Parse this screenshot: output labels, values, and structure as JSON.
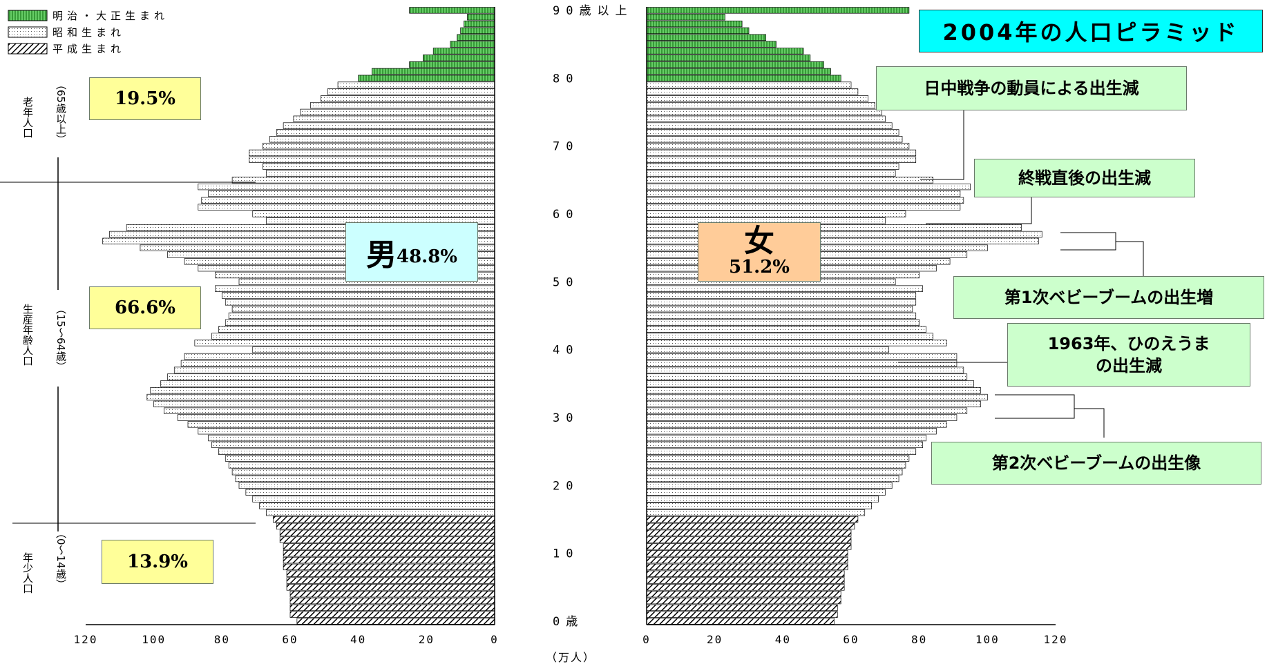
{
  "title": "2004年の人口ピラミッド",
  "legend": [
    {
      "label": "明治・大正生まれ",
      "pattern": "meiji"
    },
    {
      "label": "昭和生まれ",
      "pattern": "showa"
    },
    {
      "label": "平成生まれ",
      "pattern": "heisei"
    }
  ],
  "male": {
    "label": "男",
    "pct": "48.8%"
  },
  "female": {
    "label": "女",
    "pct": "51.2%"
  },
  "age_groups": [
    {
      "label": "老年人口",
      "range": "（65歳以上）",
      "pct": "19.5%"
    },
    {
      "label": "生産年齢人口",
      "range": "（15～64歳）",
      "pct": "66.6%"
    },
    {
      "label": "年少人口",
      "range": "（0～14歳）",
      "pct": "13.9%"
    }
  ],
  "annotations": {
    "a1": "日中戦争の動員による出生減",
    "a2": "終戦直後の出生減",
    "a3": "第1次ベビーブームの出生増",
    "a4_line1": "1963年、ひのえうま",
    "a4_line2": "の出生減",
    "a5": "第2次ベビーブームの出生像"
  },
  "x_unit": "（万人）",
  "chart_data": {
    "type": "bar",
    "title": "2004年の人口ピラミッド",
    "xlabel": "（万人）",
    "ylabel": "",
    "xlim_male": [
      120,
      0
    ],
    "xlim_female": [
      0,
      120
    ],
    "x_ticks_male": [
      "120",
      "100",
      "80",
      "60",
      "40",
      "20",
      "0"
    ],
    "x_ticks_female": [
      "0",
      "20",
      "40",
      "60",
      "80",
      "100",
      "120"
    ],
    "age_ticks": [
      "0歳",
      "10",
      "20",
      "30",
      "40",
      "50",
      "60",
      "70",
      "80",
      "90歳以上"
    ],
    "ages": [
      0,
      1,
      2,
      3,
      4,
      5,
      6,
      7,
      8,
      9,
      10,
      11,
      12,
      13,
      14,
      15,
      16,
      17,
      18,
      19,
      20,
      21,
      22,
      23,
      24,
      25,
      26,
      27,
      28,
      29,
      30,
      31,
      32,
      33,
      34,
      35,
      36,
      37,
      38,
      39,
      40,
      41,
      42,
      43,
      44,
      45,
      46,
      47,
      48,
      49,
      50,
      51,
      52,
      53,
      54,
      55,
      56,
      57,
      58,
      59,
      60,
      61,
      62,
      63,
      64,
      65,
      66,
      67,
      68,
      69,
      70,
      71,
      72,
      73,
      74,
      75,
      76,
      77,
      78,
      79,
      80,
      81,
      82,
      83,
      84,
      85,
      86,
      87,
      88,
      89,
      "90歳以上"
    ],
    "series": [
      {
        "name": "男",
        "values": [
          58,
          60,
          60,
          60,
          60,
          61,
          61,
          61,
          62,
          62,
          62,
          62,
          63,
          63,
          64,
          65,
          67,
          69,
          71,
          73,
          75,
          76,
          77,
          78,
          79,
          81,
          83,
          84,
          87,
          90,
          93,
          97,
          100,
          102,
          101,
          98,
          96,
          94,
          92,
          91,
          71,
          88,
          83,
          81,
          79,
          78,
          77,
          79,
          80,
          82,
          75,
          82,
          87,
          91,
          96,
          104,
          115,
          113,
          108,
          67,
          71,
          87,
          86,
          84,
          87,
          77,
          67,
          68,
          72,
          72,
          68,
          66,
          64,
          62,
          59,
          57,
          54,
          51,
          49,
          46,
          40,
          36,
          25,
          21,
          18,
          13,
          11,
          10,
          9,
          8,
          25
        ],
        "era": [
          "平成",
          "平成",
          "平成",
          "平成",
          "平成",
          "平成",
          "平成",
          "平成",
          "平成",
          "平成",
          "平成",
          "平成",
          "平成",
          "平成",
          "平成",
          "平成",
          "昭和",
          "昭和",
          "昭和",
          "昭和",
          "昭和",
          "昭和",
          "昭和",
          "昭和",
          "昭和",
          "昭和",
          "昭和",
          "昭和",
          "昭和",
          "昭和",
          "昭和",
          "昭和",
          "昭和",
          "昭和",
          "昭和",
          "昭和",
          "昭和",
          "昭和",
          "昭和",
          "昭和",
          "昭和",
          "昭和",
          "昭和",
          "昭和",
          "昭和",
          "昭和",
          "昭和",
          "昭和",
          "昭和",
          "昭和",
          "昭和",
          "昭和",
          "昭和",
          "昭和",
          "昭和",
          "昭和",
          "昭和",
          "昭和",
          "昭和",
          "昭和",
          "昭和",
          "昭和",
          "昭和",
          "昭和",
          "昭和",
          "昭和",
          "昭和",
          "昭和",
          "昭和",
          "昭和",
          "昭和",
          "昭和",
          "昭和",
          "昭和",
          "昭和",
          "昭和",
          "昭和",
          "昭和",
          "昭和",
          "昭和",
          "明治・大正",
          "明治・大正",
          "明治・大正",
          "明治・大正",
          "明治・大正",
          "明治・大正",
          "明治・大正",
          "明治・大正",
          "明治・大正",
          "明治・大正",
          "明治・大正"
        ]
      },
      {
        "name": "女",
        "values": [
          55,
          56,
          56,
          57,
          57,
          58,
          58,
          58,
          59,
          59,
          59,
          60,
          60,
          60,
          61,
          62,
          64,
          66,
          68,
          70,
          72,
          74,
          75,
          76,
          77,
          79,
          81,
          82,
          85,
          88,
          91,
          94,
          98,
          100,
          98,
          96,
          94,
          93,
          91,
          91,
          71,
          88,
          84,
          82,
          80,
          79,
          78,
          79,
          79,
          81,
          73,
          80,
          85,
          89,
          94,
          100,
          115,
          116,
          110,
          70,
          76,
          92,
          93,
          92,
          95,
          84,
          73,
          74,
          79,
          79,
          77,
          75,
          74,
          72,
          70,
          69,
          67,
          65,
          62,
          60,
          57,
          54,
          52,
          48,
          46,
          38,
          35,
          30,
          28,
          23,
          77
        ],
        "era": [
          "平成",
          "平成",
          "平成",
          "平成",
          "平成",
          "平成",
          "平成",
          "平成",
          "平成",
          "平成",
          "平成",
          "平成",
          "平成",
          "平成",
          "平成",
          "平成",
          "昭和",
          "昭和",
          "昭和",
          "昭和",
          "昭和",
          "昭和",
          "昭和",
          "昭和",
          "昭和",
          "昭和",
          "昭和",
          "昭和",
          "昭和",
          "昭和",
          "昭和",
          "昭和",
          "昭和",
          "昭和",
          "昭和",
          "昭和",
          "昭和",
          "昭和",
          "昭和",
          "昭和",
          "昭和",
          "昭和",
          "昭和",
          "昭和",
          "昭和",
          "昭和",
          "昭和",
          "昭和",
          "昭和",
          "昭和",
          "昭和",
          "昭和",
          "昭和",
          "昭和",
          "昭和",
          "昭和",
          "昭和",
          "昭和",
          "昭和",
          "昭和",
          "昭和",
          "昭和",
          "昭和",
          "昭和",
          "昭和",
          "昭和",
          "昭和",
          "昭和",
          "昭和",
          "昭和",
          "昭和",
          "昭和",
          "昭和",
          "昭和",
          "昭和",
          "昭和",
          "昭和",
          "昭和",
          "昭和",
          "昭和",
          "明治・大正",
          "明治・大正",
          "明治・大正",
          "明治・大正",
          "明治・大正",
          "明治・大正",
          "明治・大正",
          "明治・大正",
          "明治・大正",
          "明治・大正",
          "明治・大正"
        ]
      }
    ]
  }
}
